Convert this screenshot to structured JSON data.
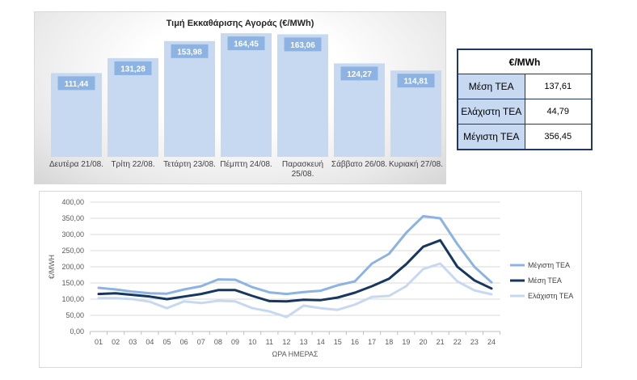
{
  "chart_data": [
    {
      "type": "bar",
      "title": "Τιμή Εκκαθάρισης Αγοράς (€/MWh)",
      "categories": [
        "Δευτέρα 21/08.",
        "Τρίτη 22/08.",
        "Τετάρτη 23/08.",
        "Πέμπτη 24/08.",
        "Παρασκευή 25/08.",
        "Σάββατο 26/08.",
        "Κυριακή 27/08."
      ],
      "values": [
        111.44,
        131.28,
        153.98,
        164.45,
        163.06,
        124.27,
        114.81
      ],
      "data_labels": [
        "111,44",
        "131,28",
        "153,98",
        "164,45",
        "163,06",
        "124,27",
        "114,81"
      ],
      "ylim": [
        0,
        180
      ],
      "grid": false,
      "colors": {
        "bar": "#c6d9f1",
        "label_box": "#8db3e2",
        "label_text": "#ffffff"
      }
    },
    {
      "type": "table",
      "header": "€/MWh",
      "rows": [
        {
          "label": "Μέση ΤΕΑ",
          "value": "137,61"
        },
        {
          "label": "Ελάχιστη ΤΕΑ",
          "value": "44,79"
        },
        {
          "label": "Μέγιστη ΤΕΑ",
          "value": "356,45"
        }
      ],
      "colors": {
        "border": "#1f3864",
        "label_fill": "#c6d9f1"
      }
    },
    {
      "type": "line",
      "x": [
        "01",
        "02",
        "03",
        "04",
        "05",
        "06",
        "07",
        "08",
        "09",
        "10",
        "11",
        "12",
        "13",
        "14",
        "15",
        "16",
        "17",
        "18",
        "19",
        "20",
        "21",
        "22",
        "23",
        "24"
      ],
      "xlabel": "ΩΡΑ ΗΜΕΡΑΣ",
      "ylabel": "€/MWH",
      "ylim": [
        0,
        400
      ],
      "yticks": [
        0,
        50,
        100,
        150,
        200,
        250,
        300,
        350,
        400
      ],
      "ytick_labels": [
        "0,00",
        "50,00",
        "100,00",
        "150,00",
        "200,00",
        "250,00",
        "300,00",
        "350,00",
        "400,00"
      ],
      "grid": true,
      "legend": "right",
      "series": [
        {
          "name": "Μέγιστη ΤΕΑ",
          "color": "#8db3e2",
          "values": [
            135,
            130,
            123,
            118,
            117,
            130,
            140,
            161,
            160,
            137,
            121,
            116,
            122,
            126,
            143,
            155,
            210,
            240,
            305,
            356.45,
            350,
            270,
            200,
            152
          ]
        },
        {
          "name": "Μέση ΤΕΑ",
          "color": "#17375e",
          "values": [
            116,
            118,
            113,
            108,
            100,
            108,
            116,
            128,
            128,
            110,
            94,
            93,
            98,
            97,
            105,
            120,
            140,
            163,
            208,
            262,
            282,
            200,
            158,
            133
          ]
        },
        {
          "name": "Ελάχιστη ΤΕΑ",
          "color": "#c6d9f1",
          "values": [
            103,
            103,
            100,
            92,
            72,
            93,
            88,
            95,
            93,
            72,
            62,
            44.79,
            80,
            72,
            67,
            83,
            107,
            110,
            140,
            193,
            210,
            155,
            127,
            115
          ]
        }
      ]
    }
  ]
}
